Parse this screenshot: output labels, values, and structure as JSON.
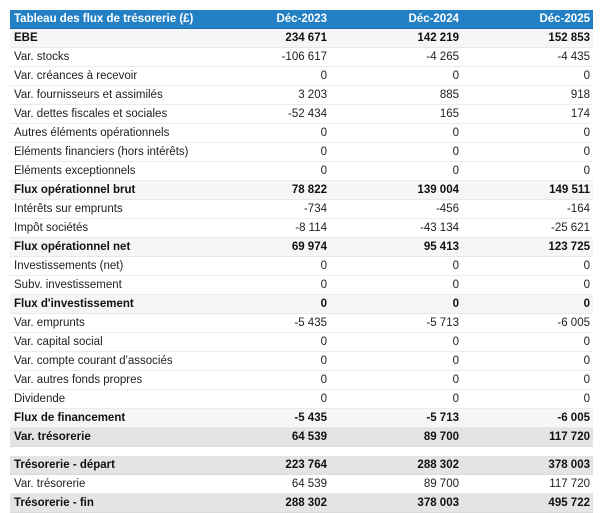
{
  "table": {
    "title": "Tableau des flux de trésorerie (£)",
    "columns": [
      "Déc-2023",
      "Déc-2024",
      "Déc-2025"
    ],
    "colors": {
      "header_bg": "#2380c4",
      "header_text": "#ffffff",
      "subtotal_bg": "#f5f6f6",
      "total_bg": "#e3e4e4"
    },
    "rows": [
      {
        "label": "EBE",
        "values": [
          "234 671",
          "142 219",
          "152 853"
        ],
        "style": "subtotal"
      },
      {
        "label": "Var. stocks",
        "values": [
          "-106 617",
          "-4 265",
          "-4 435"
        ],
        "style": "normal"
      },
      {
        "label": "Var. créances à recevoir",
        "values": [
          "0",
          "0",
          "0"
        ],
        "style": "normal"
      },
      {
        "label": "Var. fournisseurs et assimilés",
        "values": [
          "3 203",
          "885",
          "918"
        ],
        "style": "normal"
      },
      {
        "label": "Var. dettes fiscales et sociales",
        "values": [
          "-52 434",
          "165",
          "174"
        ],
        "style": "normal"
      },
      {
        "label": "Autres éléments opérationnels",
        "values": [
          "0",
          "0",
          "0"
        ],
        "style": "normal"
      },
      {
        "label": "Eléments financiers (hors intérêts)",
        "values": [
          "0",
          "0",
          "0"
        ],
        "style": "normal"
      },
      {
        "label": "Eléments exceptionnels",
        "values": [
          "0",
          "0",
          "0"
        ],
        "style": "normal"
      },
      {
        "label": "Flux opérationnel brut",
        "values": [
          "78 822",
          "139 004",
          "149 511"
        ],
        "style": "subtotal"
      },
      {
        "label": "Intérêts sur emprunts",
        "values": [
          "-734",
          "-456",
          "-164"
        ],
        "style": "normal"
      },
      {
        "label": "Impôt sociétés",
        "values": [
          "-8 114",
          "-43 134",
          "-25 621"
        ],
        "style": "normal"
      },
      {
        "label": "Flux opérationnel net",
        "values": [
          "69 974",
          "95 413",
          "123 725"
        ],
        "style": "subtotal"
      },
      {
        "label": "Investissements (net)",
        "values": [
          "0",
          "0",
          "0"
        ],
        "style": "normal"
      },
      {
        "label": "Subv. investissement",
        "values": [
          "0",
          "0",
          "0"
        ],
        "style": "normal"
      },
      {
        "label": "Flux d'investissement",
        "values": [
          "0",
          "0",
          "0"
        ],
        "style": "subtotal"
      },
      {
        "label": "Var. emprunts",
        "values": [
          "-5 435",
          "-5 713",
          "-6 005"
        ],
        "style": "normal"
      },
      {
        "label": "Var. capital social",
        "values": [
          "0",
          "0",
          "0"
        ],
        "style": "normal"
      },
      {
        "label": "Var. compte courant d'associés",
        "values": [
          "0",
          "0",
          "0"
        ],
        "style": "normal"
      },
      {
        "label": "Var. autres fonds propres",
        "values": [
          "0",
          "0",
          "0"
        ],
        "style": "normal"
      },
      {
        "label": "Dividende",
        "values": [
          "0",
          "0",
          "0"
        ],
        "style": "normal"
      },
      {
        "label": "Flux de financement",
        "values": [
          "-5 435",
          "-5 713",
          "-6 005"
        ],
        "style": "subtotal"
      },
      {
        "label": "Var. trésorerie",
        "values": [
          "64 539",
          "89 700",
          "117 720"
        ],
        "style": "total"
      }
    ],
    "rows2": [
      {
        "label": "Trésorerie - départ",
        "values": [
          "223 764",
          "288 302",
          "378 003"
        ],
        "style": "total"
      },
      {
        "label": "Var. trésorerie",
        "values": [
          "64 539",
          "89 700",
          "117 720"
        ],
        "style": "normal"
      },
      {
        "label": "Trésorerie - fin",
        "values": [
          "288 302",
          "378 003",
          "495 722"
        ],
        "style": "total"
      }
    ]
  }
}
